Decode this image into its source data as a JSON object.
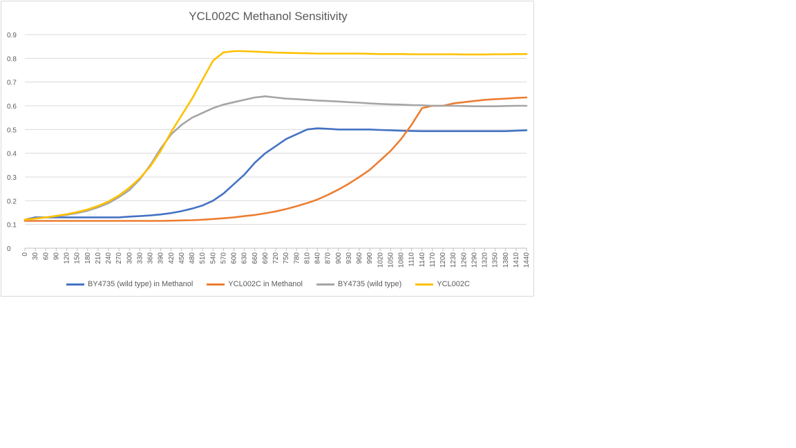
{
  "chart_data": {
    "type": "line",
    "title": "YCL002C Methanol Sensitivity",
    "xlabel": "",
    "ylabel": "",
    "xlim": [
      0,
      1440
    ],
    "ylim": [
      0,
      0.9
    ],
    "yticks": [
      "0",
      "0.1",
      "0.2",
      "0.3",
      "0.4",
      "0.5",
      "0.6",
      "0.7",
      "0.8",
      "0.9"
    ],
    "xticks": [
      "0",
      "30",
      "60",
      "90",
      "120",
      "150",
      "180",
      "210",
      "240",
      "270",
      "300",
      "330",
      "360",
      "390",
      "420",
      "450",
      "480",
      "510",
      "540",
      "570",
      "600",
      "630",
      "660",
      "690",
      "720",
      "750",
      "780",
      "810",
      "840",
      "870",
      "900",
      "930",
      "960",
      "990",
      "1020",
      "1050",
      "1080",
      "1110",
      "1140",
      "1170",
      "1200",
      "1230",
      "1260",
      "1290",
      "1320",
      "1350",
      "1380",
      "1410",
      "1440"
    ],
    "grid": true,
    "legend_position": "bottom",
    "series": [
      {
        "name": "BY4735 (wild type) in Methanol",
        "color": "#4472c4",
        "points": [
          [
            0,
            0.12
          ],
          [
            30,
            0.13
          ],
          [
            60,
            0.13
          ],
          [
            90,
            0.13
          ],
          [
            120,
            0.13
          ],
          [
            150,
            0.13
          ],
          [
            180,
            0.13
          ],
          [
            210,
            0.13
          ],
          [
            240,
            0.13
          ],
          [
            270,
            0.13
          ],
          [
            300,
            0.133
          ],
          [
            330,
            0.135
          ],
          [
            360,
            0.138
          ],
          [
            390,
            0.142
          ],
          [
            420,
            0.148
          ],
          [
            450,
            0.156
          ],
          [
            480,
            0.167
          ],
          [
            510,
            0.18
          ],
          [
            540,
            0.2
          ],
          [
            570,
            0.23
          ],
          [
            600,
            0.27
          ],
          [
            630,
            0.31
          ],
          [
            660,
            0.36
          ],
          [
            690,
            0.4
          ],
          [
            720,
            0.43
          ],
          [
            750,
            0.46
          ],
          [
            780,
            0.48
          ],
          [
            810,
            0.5
          ],
          [
            840,
            0.505
          ],
          [
            870,
            0.503
          ],
          [
            900,
            0.5
          ],
          [
            930,
            0.5
          ],
          [
            960,
            0.5
          ],
          [
            990,
            0.5
          ],
          [
            1020,
            0.498
          ],
          [
            1050,
            0.497
          ],
          [
            1080,
            0.495
          ],
          [
            1110,
            0.494
          ],
          [
            1140,
            0.493
          ],
          [
            1170,
            0.493
          ],
          [
            1200,
            0.493
          ],
          [
            1230,
            0.493
          ],
          [
            1260,
            0.493
          ],
          [
            1290,
            0.493
          ],
          [
            1320,
            0.493
          ],
          [
            1350,
            0.493
          ],
          [
            1380,
            0.493
          ],
          [
            1410,
            0.495
          ],
          [
            1440,
            0.497
          ]
        ]
      },
      {
        "name": "YCL002C in Methanol",
        "color": "#ed7d31",
        "points": [
          [
            0,
            0.115
          ],
          [
            30,
            0.115
          ],
          [
            60,
            0.115
          ],
          [
            90,
            0.115
          ],
          [
            120,
            0.115
          ],
          [
            150,
            0.115
          ],
          [
            180,
            0.115
          ],
          [
            210,
            0.115
          ],
          [
            240,
            0.115
          ],
          [
            270,
            0.115
          ],
          [
            300,
            0.115
          ],
          [
            330,
            0.115
          ],
          [
            360,
            0.115
          ],
          [
            390,
            0.115
          ],
          [
            420,
            0.116
          ],
          [
            450,
            0.117
          ],
          [
            480,
            0.118
          ],
          [
            510,
            0.12
          ],
          [
            540,
            0.123
          ],
          [
            570,
            0.126
          ],
          [
            600,
            0.13
          ],
          [
            630,
            0.135
          ],
          [
            660,
            0.14
          ],
          [
            690,
            0.147
          ],
          [
            720,
            0.155
          ],
          [
            750,
            0.165
          ],
          [
            780,
            0.177
          ],
          [
            810,
            0.19
          ],
          [
            840,
            0.205
          ],
          [
            870,
            0.225
          ],
          [
            900,
            0.247
          ],
          [
            930,
            0.272
          ],
          [
            960,
            0.3
          ],
          [
            990,
            0.33
          ],
          [
            1020,
            0.37
          ],
          [
            1050,
            0.41
          ],
          [
            1080,
            0.46
          ],
          [
            1110,
            0.52
          ],
          [
            1140,
            0.59
          ],
          [
            1170,
            0.6
          ],
          [
            1200,
            0.6
          ],
          [
            1230,
            0.61
          ],
          [
            1260,
            0.615
          ],
          [
            1290,
            0.62
          ],
          [
            1320,
            0.625
          ],
          [
            1350,
            0.628
          ],
          [
            1380,
            0.63
          ],
          [
            1410,
            0.633
          ],
          [
            1440,
            0.635
          ]
        ]
      },
      {
        "name": "BY4735 (wild type)",
        "color": "#a5a5a5",
        "points": [
          [
            0,
            0.12
          ],
          [
            30,
            0.125
          ],
          [
            60,
            0.13
          ],
          [
            90,
            0.135
          ],
          [
            120,
            0.14
          ],
          [
            150,
            0.148
          ],
          [
            180,
            0.158
          ],
          [
            210,
            0.172
          ],
          [
            240,
            0.19
          ],
          [
            270,
            0.215
          ],
          [
            300,
            0.245
          ],
          [
            330,
            0.29
          ],
          [
            360,
            0.35
          ],
          [
            390,
            0.42
          ],
          [
            420,
            0.48
          ],
          [
            450,
            0.52
          ],
          [
            480,
            0.55
          ],
          [
            510,
            0.57
          ],
          [
            540,
            0.59
          ],
          [
            570,
            0.605
          ],
          [
            600,
            0.615
          ],
          [
            630,
            0.625
          ],
          [
            660,
            0.635
          ],
          [
            690,
            0.64
          ],
          [
            720,
            0.635
          ],
          [
            750,
            0.63
          ],
          [
            780,
            0.628
          ],
          [
            810,
            0.625
          ],
          [
            840,
            0.622
          ],
          [
            870,
            0.62
          ],
          [
            900,
            0.618
          ],
          [
            930,
            0.615
          ],
          [
            960,
            0.613
          ],
          [
            990,
            0.61
          ],
          [
            1020,
            0.608
          ],
          [
            1050,
            0.606
          ],
          [
            1080,
            0.605
          ],
          [
            1110,
            0.603
          ],
          [
            1140,
            0.602
          ],
          [
            1170,
            0.6
          ],
          [
            1200,
            0.6
          ],
          [
            1230,
            0.6
          ],
          [
            1260,
            0.599
          ],
          [
            1290,
            0.598
          ],
          [
            1320,
            0.598
          ],
          [
            1350,
            0.598
          ],
          [
            1380,
            0.599
          ],
          [
            1410,
            0.6
          ],
          [
            1440,
            0.6
          ]
        ]
      },
      {
        "name": "YCL002C",
        "color": "#ffc000",
        "points": [
          [
            0,
            0.12
          ],
          [
            30,
            0.125
          ],
          [
            60,
            0.13
          ],
          [
            90,
            0.136
          ],
          [
            120,
            0.143
          ],
          [
            150,
            0.152
          ],
          [
            180,
            0.163
          ],
          [
            210,
            0.178
          ],
          [
            240,
            0.197
          ],
          [
            270,
            0.222
          ],
          [
            300,
            0.255
          ],
          [
            330,
            0.295
          ],
          [
            360,
            0.345
          ],
          [
            390,
            0.41
          ],
          [
            420,
            0.49
          ],
          [
            450,
            0.56
          ],
          [
            480,
            0.63
          ],
          [
            510,
            0.71
          ],
          [
            540,
            0.79
          ],
          [
            570,
            0.825
          ],
          [
            600,
            0.83
          ],
          [
            630,
            0.83
          ],
          [
            660,
            0.828
          ],
          [
            690,
            0.826
          ],
          [
            720,
            0.824
          ],
          [
            750,
            0.823
          ],
          [
            780,
            0.822
          ],
          [
            810,
            0.821
          ],
          [
            840,
            0.82
          ],
          [
            870,
            0.82
          ],
          [
            900,
            0.82
          ],
          [
            930,
            0.82
          ],
          [
            960,
            0.82
          ],
          [
            990,
            0.819
          ],
          [
            1020,
            0.818
          ],
          [
            1050,
            0.818
          ],
          [
            1080,
            0.818
          ],
          [
            1110,
            0.817
          ],
          [
            1140,
            0.817
          ],
          [
            1170,
            0.817
          ],
          [
            1200,
            0.817
          ],
          [
            1230,
            0.817
          ],
          [
            1260,
            0.816
          ],
          [
            1290,
            0.816
          ],
          [
            1320,
            0.816
          ],
          [
            1350,
            0.817
          ],
          [
            1380,
            0.817
          ],
          [
            1410,
            0.818
          ],
          [
            1440,
            0.818
          ]
        ]
      }
    ]
  }
}
